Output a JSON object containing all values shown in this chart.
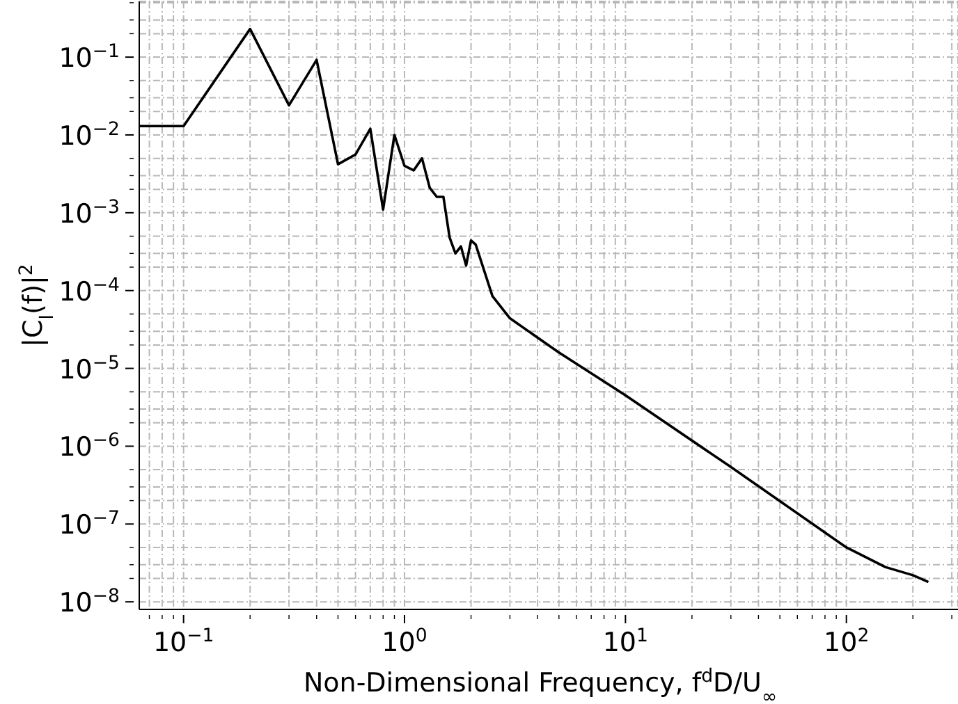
{
  "chart_data": {
    "type": "line",
    "xlabel": "Non-Dimensional Frequency, f$^{d}$D/U$_{∞}$",
    "ylabel": "|C$_{l}$(f)|$^{2}$",
    "log": "xy",
    "grid": true,
    "line_style": "solid",
    "marker": "none",
    "xlim": [
      0.063,
      320
    ],
    "ylim": [
      8e-09,
      0.52
    ],
    "xticks": [
      {
        "value": 0.07,
        "label": null
      },
      {
        "value": 0.08,
        "label": null
      },
      {
        "value": 0.09,
        "label": null
      },
      {
        "value": 0.1,
        "label": "10$^{−1}$"
      },
      {
        "value": 0.2,
        "label": null
      },
      {
        "value": 0.3,
        "label": null
      },
      {
        "value": 0.4,
        "label": null
      },
      {
        "value": 0.5,
        "label": null
      },
      {
        "value": 0.6,
        "label": null
      },
      {
        "value": 0.7,
        "label": null
      },
      {
        "value": 0.8,
        "label": null
      },
      {
        "value": 0.9,
        "label": null
      },
      {
        "value": 1,
        "label": "10$^{0}$"
      },
      {
        "value": 2,
        "label": null
      },
      {
        "value": 3,
        "label": null
      },
      {
        "value": 4,
        "label": null
      },
      {
        "value": 5,
        "label": null
      },
      {
        "value": 6,
        "label": null
      },
      {
        "value": 7,
        "label": null
      },
      {
        "value": 8,
        "label": null
      },
      {
        "value": 9,
        "label": null
      },
      {
        "value": 10,
        "label": "10$^{1}$"
      },
      {
        "value": 20,
        "label": null
      },
      {
        "value": 30,
        "label": null
      },
      {
        "value": 40,
        "label": null
      },
      {
        "value": 50,
        "label": null
      },
      {
        "value": 60,
        "label": null
      },
      {
        "value": 70,
        "label": null
      },
      {
        "value": 80,
        "label": null
      },
      {
        "value": 90,
        "label": null
      },
      {
        "value": 100,
        "label": "10$^{2}$"
      },
      {
        "value": 200,
        "label": null
      },
      {
        "value": 300,
        "label": null
      }
    ],
    "yticks": [
      {
        "value": 1e-08,
        "label": "10$^{−8}$"
      },
      {
        "value": 2e-08,
        "label": null
      },
      {
        "value": 3e-08,
        "label": null
      },
      {
        "value": 5e-08,
        "label": null
      },
      {
        "value": 1e-07,
        "label": "10$^{−7}$"
      },
      {
        "value": 2e-07,
        "label": null
      },
      {
        "value": 3e-07,
        "label": null
      },
      {
        "value": 5e-07,
        "label": null
      },
      {
        "value": 1e-06,
        "label": "10$^{−6}$"
      },
      {
        "value": 2e-06,
        "label": null
      },
      {
        "value": 3e-06,
        "label": null
      },
      {
        "value": 5e-06,
        "label": null
      },
      {
        "value": 1e-05,
        "label": "10$^{−5}$"
      },
      {
        "value": 2e-05,
        "label": null
      },
      {
        "value": 3e-05,
        "label": null
      },
      {
        "value": 5e-05,
        "label": null
      },
      {
        "value": 0.0001,
        "label": "10$^{−4}$"
      },
      {
        "value": 0.0002,
        "label": null
      },
      {
        "value": 0.0003,
        "label": null
      },
      {
        "value": 0.0005,
        "label": null
      },
      {
        "value": 0.001,
        "label": "10$^{−3}$"
      },
      {
        "value": 0.002,
        "label": null
      },
      {
        "value": 0.003,
        "label": null
      },
      {
        "value": 0.005,
        "label": null
      },
      {
        "value": 0.01,
        "label": "10$^{−2}$"
      },
      {
        "value": 0.02,
        "label": null
      },
      {
        "value": 0.03,
        "label": null
      },
      {
        "value": 0.05,
        "label": null
      },
      {
        "value": 0.1,
        "label": "10$^{−1}$"
      },
      {
        "value": 0.2,
        "label": null
      },
      {
        "value": 0.3,
        "label": null
      },
      {
        "value": 0.5,
        "label": null
      }
    ],
    "x": [
      0.063,
      0.1,
      0.2,
      0.3,
      0.4,
      0.5,
      0.6,
      0.7,
      0.8,
      0.9,
      1.0,
      1.1,
      1.2,
      1.3,
      1.4,
      1.5,
      1.6,
      1.7,
      1.8,
      1.9,
      2.0,
      2.1,
      2.5,
      3,
      5,
      10,
      30,
      100,
      150,
      200,
      235
    ],
    "series": [
      {
        "color": "#000000",
        "values": [
          0.013,
          0.013,
          0.23,
          0.024,
          0.092,
          0.0042,
          0.0056,
          0.012,
          0.0011,
          0.01,
          0.004,
          0.0035,
          0.005,
          0.0021,
          0.0016,
          0.0016,
          0.00048,
          0.0003,
          0.00037,
          0.00021,
          0.00044,
          0.00039,
          8.5e-05,
          4.4e-05,
          1.6e-05,
          4.5e-06,
          5.4e-07,
          5e-08,
          2.8e-08,
          2.2e-08,
          1.8e-08
        ]
      }
    ]
  }
}
